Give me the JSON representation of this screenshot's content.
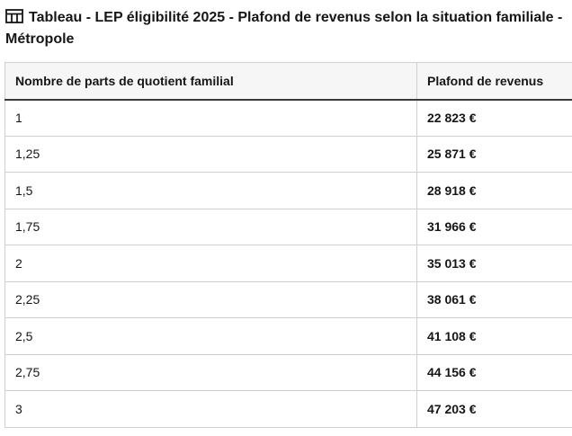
{
  "caption": {
    "title": "Tableau - LEP éligibilité 2025 - Plafond de revenus selon la situation familiale - Métropole",
    "icon": "table-icon"
  },
  "table": {
    "headers": [
      "Nombre de parts de quotient familial",
      "Plafond de revenus"
    ],
    "rows": [
      {
        "parts": "1",
        "plafond": "22 823 €"
      },
      {
        "parts": "1,25",
        "plafond": "25 871 €"
      },
      {
        "parts": "1,5",
        "plafond": "28 918 €"
      },
      {
        "parts": "1,75",
        "plafond": "31 966 €"
      },
      {
        "parts": "2",
        "plafond": "35 013 €"
      },
      {
        "parts": "2,25",
        "plafond": "38 061 €"
      },
      {
        "parts": "2,5",
        "plafond": "41 108 €"
      },
      {
        "parts": "2,75",
        "plafond": "44 156 €"
      },
      {
        "parts": "3",
        "plafond": "47 203 €"
      }
    ]
  },
  "colors": {
    "text": "#161616",
    "header_bg": "#f6f6f6",
    "border": "#cfcfcf",
    "header_rule": "#3a3a3a"
  }
}
